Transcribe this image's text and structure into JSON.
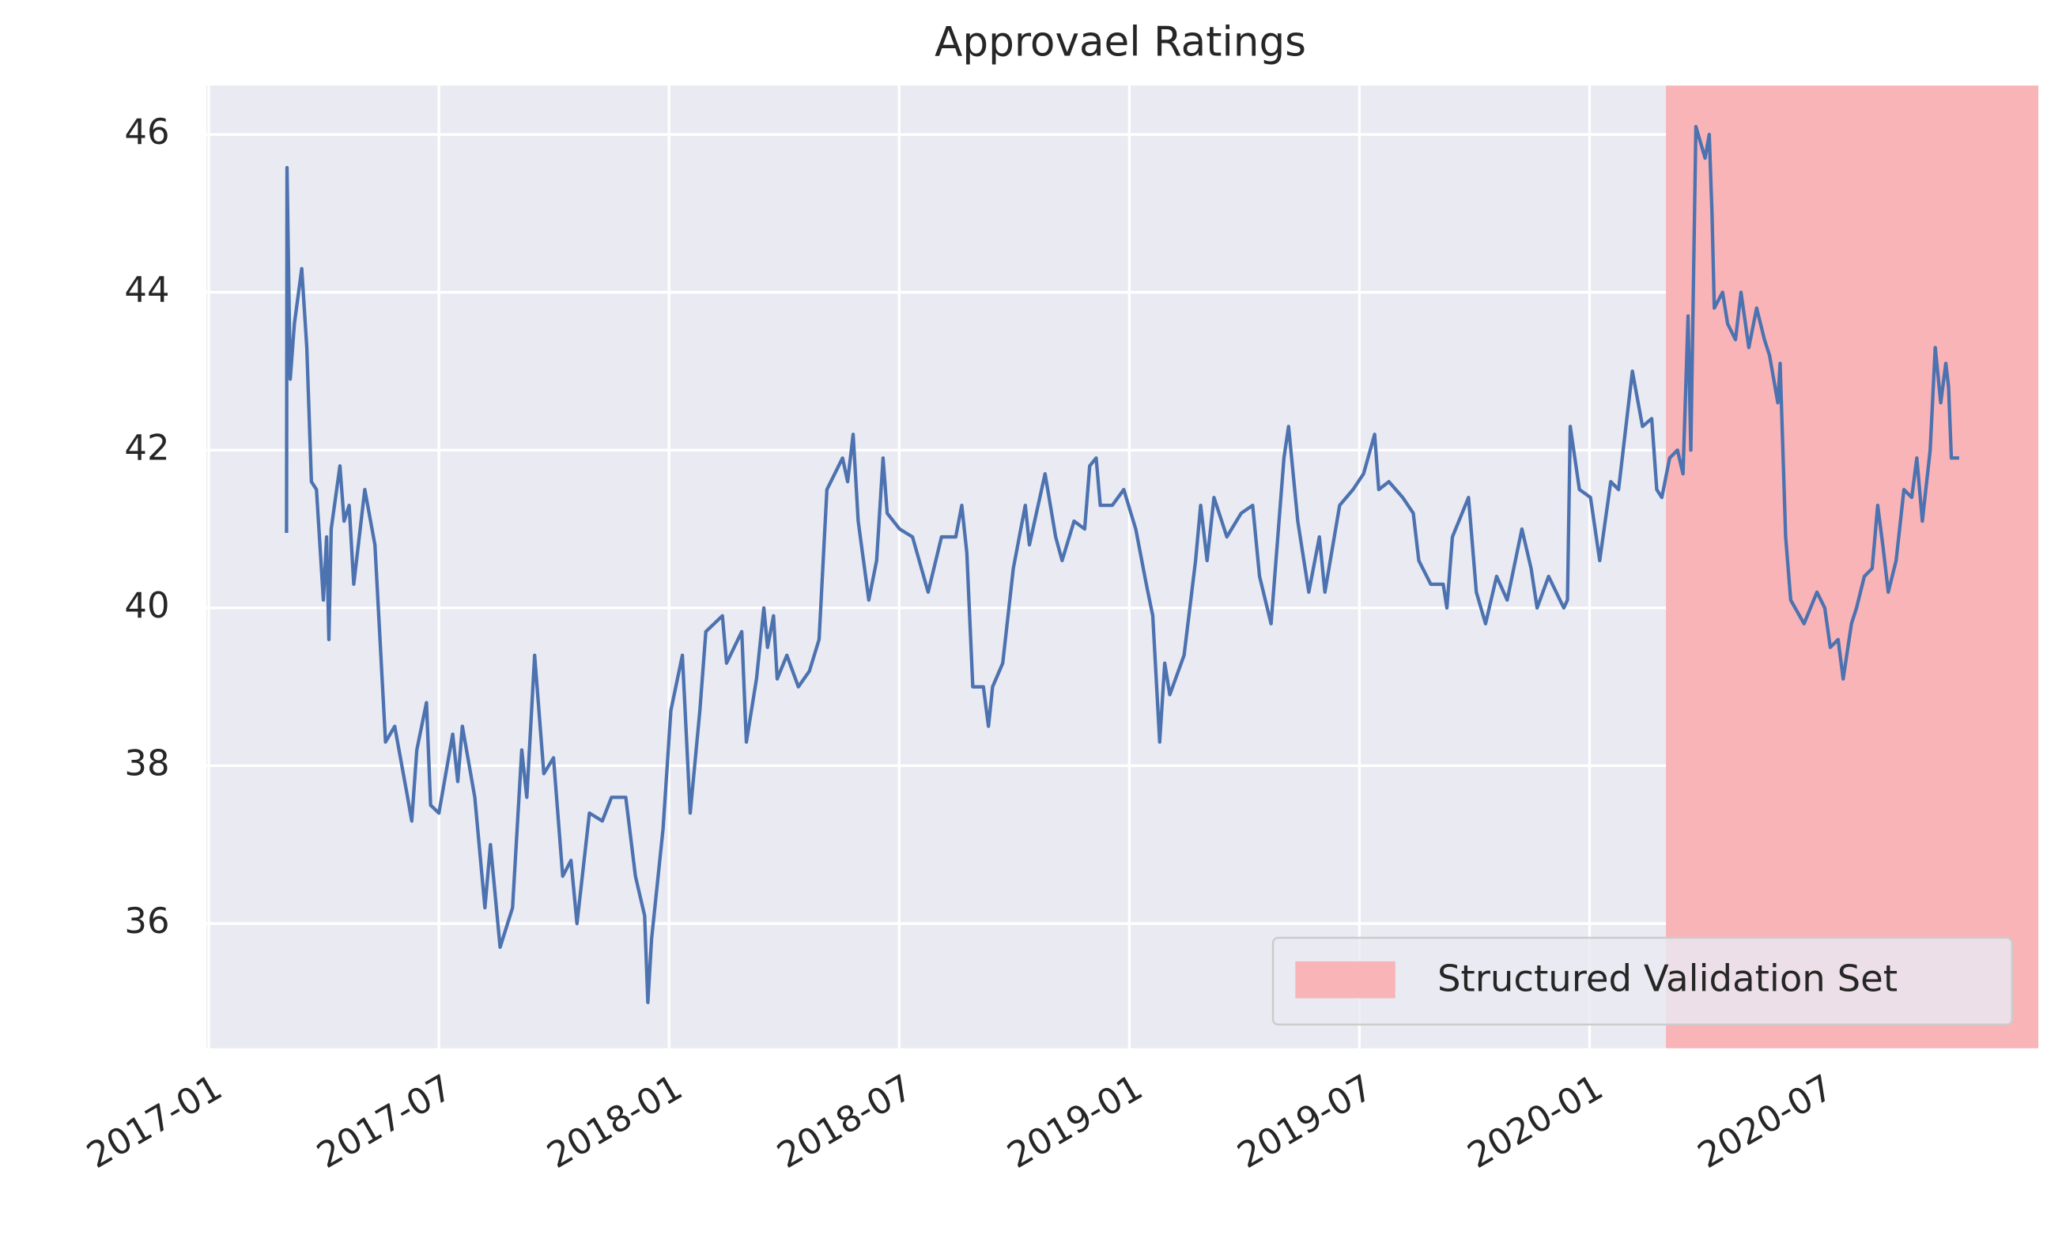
{
  "chart_data": {
    "type": "line",
    "title": "Approvael Ratings",
    "x": [
      2017.169,
      2017.17,
      2017.177,
      2017.186,
      2017.202,
      2017.213,
      2017.223,
      2017.234,
      2017.249,
      2017.256,
      2017.261,
      2017.266,
      2017.285,
      2017.294,
      2017.305,
      2017.315,
      2017.339,
      2017.361,
      2017.373,
      2017.384,
      2017.404,
      2017.432,
      2017.441,
      2017.452,
      2017.473,
      2017.482,
      2017.5,
      2017.53,
      2017.541,
      2017.551,
      2017.578,
      2017.6,
      2017.612,
      2017.633,
      2017.66,
      2017.68,
      2017.691,
      2017.708,
      2017.728,
      2017.749,
      2017.769,
      2017.787,
      2017.8,
      2017.827,
      2017.855,
      2017.875,
      2017.906,
      2017.927,
      2017.947,
      2017.954,
      2017.962,
      2017.987,
      2018.004,
      2018.029,
      2018.046,
      2018.067,
      2018.08,
      2018.116,
      2018.125,
      2018.158,
      2018.168,
      2018.19,
      2018.206,
      2018.214,
      2018.227,
      2018.235,
      2018.256,
      2018.281,
      2018.305,
      2018.326,
      2018.343,
      2018.377,
      2018.388,
      2018.4,
      2018.411,
      2018.434,
      2018.451,
      2018.465,
      2018.474,
      2018.501,
      2018.529,
      2018.563,
      2018.592,
      2018.623,
      2018.636,
      2018.647,
      2018.66,
      2018.683,
      2018.694,
      2018.703,
      2018.725,
      2018.748,
      2018.774,
      2018.783,
      2018.817,
      2018.84,
      2018.854,
      2018.88,
      2018.903,
      2018.914,
      2018.928,
      2018.937,
      2018.963,
      2018.988,
      2019.014,
      2019.037,
      2019.051,
      2019.066,
      2019.077,
      2019.088,
      2019.119,
      2019.144,
      2019.155,
      2019.169,
      2019.184,
      2019.212,
      2019.243,
      2019.268,
      2019.283,
      2019.308,
      2019.336,
      2019.346,
      2019.366,
      2019.39,
      2019.413,
      2019.425,
      2019.457,
      2019.486,
      2019.509,
      2019.533,
      2019.542,
      2019.564,
      2019.594,
      2019.617,
      2019.629,
      2019.655,
      2019.682,
      2019.69,
      2019.702,
      2019.737,
      2019.754,
      2019.774,
      2019.798,
      2019.821,
      2019.853,
      2019.873,
      2019.886,
      2019.911,
      2019.944,
      2019.952,
      2019.958,
      2019.978,
      2020.002,
      2020.022,
      2020.046,
      2020.063,
      2020.093,
      2020.115,
      2020.135,
      2020.146,
      2020.157,
      2020.174,
      2020.191,
      2020.203,
      2020.214,
      2020.22,
      2020.231,
      2020.251,
      2020.26,
      2020.266,
      2020.271,
      2020.289,
      2020.3,
      2020.317,
      2020.329,
      2020.346,
      2020.363,
      2020.38,
      2020.391,
      2020.409,
      2020.414,
      2020.426,
      2020.437,
      2020.466,
      2020.494,
      2020.511,
      2020.523,
      2020.54,
      2020.551,
      2020.569,
      2020.58,
      2020.597,
      2020.614,
      2020.626,
      2020.637,
      2020.649,
      2020.666,
      2020.683,
      2020.7,
      2020.711,
      2020.723,
      2020.74,
      2020.751,
      2020.763,
      2020.774,
      2020.78,
      2020.786,
      2020.803
    ],
    "values": [
      40.95,
      45.58,
      42.9,
      43.6,
      44.3,
      43.3,
      41.6,
      41.5,
      40.1,
      40.9,
      39.6,
      41.0,
      41.8,
      41.1,
      41.3,
      40.3,
      41.5,
      40.8,
      39.5,
      38.3,
      38.5,
      37.6,
      37.3,
      38.2,
      38.8,
      37.5,
      37.4,
      38.4,
      37.8,
      38.5,
      37.6,
      36.2,
      37.0,
      35.7,
      36.2,
      38.2,
      37.6,
      39.4,
      37.9,
      38.1,
      36.6,
      36.8,
      36.0,
      37.4,
      37.3,
      37.6,
      37.6,
      36.6,
      36.1,
      35.0,
      35.8,
      37.2,
      38.7,
      39.4,
      37.4,
      38.7,
      39.7,
      39.9,
      39.3,
      39.7,
      38.3,
      39.1,
      40.0,
      39.5,
      39.9,
      39.1,
      39.4,
      39.0,
      39.2,
      39.6,
      41.5,
      41.9,
      41.6,
      42.2,
      41.1,
      40.1,
      40.6,
      41.9,
      41.2,
      41.0,
      40.9,
      40.2,
      40.9,
      40.9,
      41.3,
      40.7,
      39.0,
      39.0,
      38.5,
      39.0,
      39.3,
      40.5,
      41.3,
      40.8,
      41.7,
      40.9,
      40.6,
      41.1,
      41.0,
      41.8,
      41.9,
      41.3,
      41.3,
      41.5,
      41.0,
      40.3,
      39.9,
      38.3,
      39.3,
      38.9,
      39.4,
      40.6,
      41.3,
      40.6,
      41.4,
      40.9,
      41.2,
      41.3,
      40.4,
      39.8,
      41.9,
      42.3,
      41.1,
      40.2,
      40.9,
      40.2,
      41.3,
      41.5,
      41.7,
      42.2,
      41.5,
      41.6,
      41.4,
      41.2,
      40.6,
      40.3,
      40.3,
      40.0,
      40.9,
      41.4,
      40.2,
      39.8,
      40.4,
      40.1,
      41.0,
      40.5,
      40.0,
      40.4,
      40.0,
      40.1,
      42.3,
      41.5,
      41.4,
      40.6,
      41.6,
      41.5,
      43.0,
      42.3,
      42.4,
      41.5,
      41.4,
      41.9,
      42.0,
      41.7,
      43.7,
      42.0,
      46.1,
      45.7,
      46.0,
      45.0,
      43.8,
      44.0,
      43.6,
      43.4,
      44.0,
      43.3,
      43.8,
      43.4,
      43.2,
      42.6,
      43.1,
      40.9,
      40.1,
      39.8,
      40.2,
      40.0,
      39.5,
      39.6,
      39.1,
      39.8,
      40.0,
      40.4,
      40.5,
      41.3,
      40.8,
      40.2,
      40.6,
      41.5,
      41.4,
      41.9,
      41.1,
      42.0,
      43.3,
      42.6,
      43.1,
      42.8,
      41.9,
      41.9
    ],
    "color": "#4c72b0",
    "xlim": [
      2016.995,
      2020.975
    ],
    "xticks": [
      {
        "value": 2017.0,
        "label": "2017-01"
      },
      {
        "value": 2017.5,
        "label": "2017-07"
      },
      {
        "value": 2018.0,
        "label": "2018-01"
      },
      {
        "value": 2018.5,
        "label": "2018-07"
      },
      {
        "value": 2019.0,
        "label": "2019-01"
      },
      {
        "value": 2019.5,
        "label": "2019-07"
      },
      {
        "value": 2020.0,
        "label": "2020-01"
      },
      {
        "value": 2020.5,
        "label": "2020-07"
      }
    ],
    "ylim": [
      34.42,
      46.62
    ],
    "yticks": [
      36,
      38,
      40,
      42,
      44,
      46
    ],
    "grid": true,
    "span": {
      "label": "Structured Validation Set",
      "start": 2020.166,
      "end": 2020.975,
      "color": "#f9b4b7"
    },
    "legend": "lower right"
  }
}
